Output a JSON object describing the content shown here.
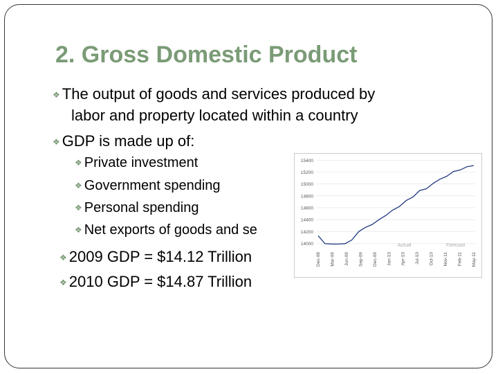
{
  "slide": {
    "title": "2. Gross Domestic Product",
    "bullets": [
      "The output of goods and services produced by",
      "labor and property located within a country",
      "GDP is made up of:",
      "Private investment",
      "Government spending",
      "Personal spending",
      "Net exports of goods and se",
      "2009 GDP = $14.12 Trillion",
      "2010 GDP = $14.87 Trillion"
    ],
    "accent_color": "#7a9b76"
  },
  "chart_data": {
    "type": "line",
    "title": "",
    "xlabel": "",
    "ylabel": "",
    "y_ticks": [
      "15400",
      "15200",
      "15000",
      "14800",
      "14600",
      "14400",
      "14200",
      "14000"
    ],
    "ylim": [
      13900,
      15450
    ],
    "x_ticks": [
      "Dec-08",
      "Mar-09",
      "Jun-09",
      "Sep-09",
      "Dec-09",
      "Jan-10",
      "Apr-10",
      "Jul-10",
      "Oct-10",
      "Nov-11",
      "Feb-11",
      "May-11"
    ],
    "annotations": [
      "Actual",
      "Forecast"
    ],
    "series": [
      {
        "color": "#1f3a80",
        "values": [
          14130,
          13995,
          13990,
          13988,
          13995,
          14060,
          14200,
          14270,
          14320,
          14400,
          14470,
          14560,
          14620,
          14720,
          14780,
          14890,
          14920,
          15010,
          15080,
          15130,
          15210,
          15235,
          15290,
          15310
        ]
      }
    ],
    "grid": true
  }
}
